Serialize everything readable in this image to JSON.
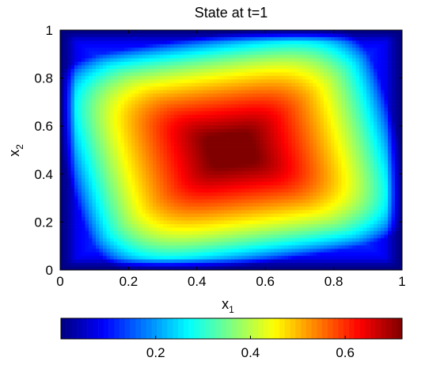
{
  "chart_data": {
    "type": "heatmap",
    "title": "State at t=1",
    "xlabel": {
      "base": "x",
      "subscript": "1"
    },
    "ylabel": {
      "base": "x",
      "subscript": "2"
    },
    "xlim": [
      0,
      1
    ],
    "ylim": [
      0,
      1
    ],
    "x_ticks": [
      "0",
      "0.2",
      "0.4",
      "0.6",
      "0.8",
      "1"
    ],
    "y_ticks": [
      "0",
      "0.2",
      "0.4",
      "0.6",
      "0.8",
      "1"
    ],
    "colormap": "jet",
    "colorbar": {
      "location": "bottom",
      "range": [
        0,
        0.72
      ],
      "ticks": [
        "0.2",
        "0.4",
        "0.6"
      ]
    },
    "field_description": "state value is 0 on the boundary of the unit square and rises to a plateau of about 0.72 in a rotated square region centered near (0.5, 0.5)",
    "max_value": 0.72,
    "min_value": 0
  }
}
